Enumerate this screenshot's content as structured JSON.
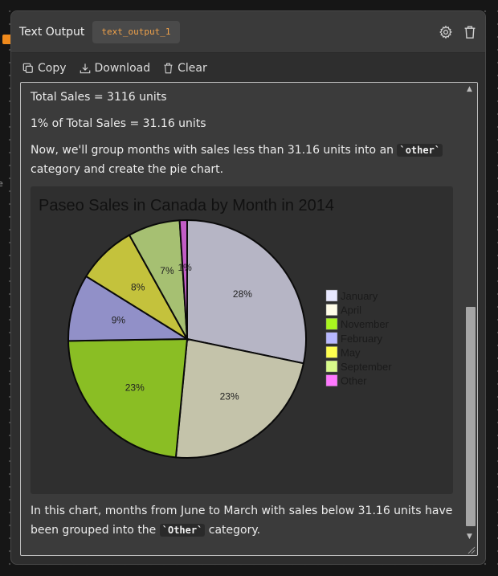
{
  "side_label": "e",
  "node": {
    "title": "Text Output",
    "id_badge": "text_output_1",
    "icons": [
      "settings-gear-icon",
      "trash-icon"
    ]
  },
  "toolbar": {
    "copy_label": "Copy",
    "download_label": "Download",
    "clear_label": "Clear"
  },
  "output": {
    "line1": "Total Sales = 3116 units",
    "line2": "1% of Total Sales = 31.16 units",
    "line3_pre": "Now, we'll group months with sales less than 31.16 units into an ",
    "line3_code": "`other`",
    "line3_post": " category and create the pie chart.",
    "footer_pre": "In this chart, months from June to March with sales below 31.16 units have been grouped into the ",
    "footer_code": "`Other`",
    "footer_post": " category."
  },
  "chart_data": {
    "type": "pie",
    "title": "Paseo Sales in Canada by Month in 2014",
    "slices": [
      {
        "label": "January",
        "value": 28,
        "pct_label": "28%",
        "color": "#b6b5c5"
      },
      {
        "label": "April",
        "value": 23,
        "pct_label": "23%",
        "color": "#c4c3aa"
      },
      {
        "label": "November",
        "value": 23,
        "pct_label": "23%",
        "color": "#8abe24"
      },
      {
        "label": "February",
        "value": 9,
        "pct_label": "9%",
        "color": "#9190c8"
      },
      {
        "label": "May",
        "value": 8,
        "pct_label": "8%",
        "color": "#c4c23c"
      },
      {
        "label": "September",
        "value": 7,
        "pct_label": "7%",
        "color": "#a6c072"
      },
      {
        "label": "Other",
        "value": 1,
        "pct_label": "1%",
        "color": "#c25cc6"
      }
    ],
    "legend": [
      {
        "label": "January",
        "color": "#e8e8ff"
      },
      {
        "label": "April",
        "color": "#fffde8"
      },
      {
        "label": "November",
        "color": "#a9f51f"
      },
      {
        "label": "February",
        "color": "#b8b8ff"
      },
      {
        "label": "May",
        "color": "#ffff4f"
      },
      {
        "label": "September",
        "color": "#d8fb8a"
      },
      {
        "label": "Other",
        "color": "#ff78ff"
      }
    ],
    "legend_position": "right",
    "start_angle": "top",
    "direction": "clockwise"
  }
}
